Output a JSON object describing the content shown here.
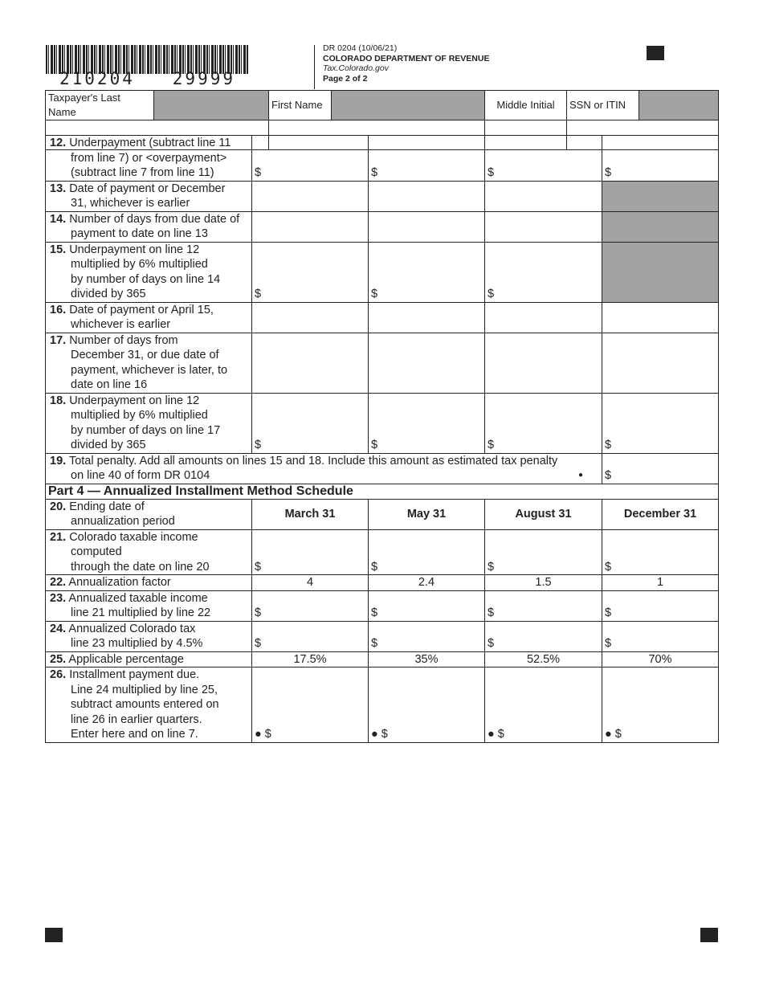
{
  "header": {
    "barcode_number": "210204   29999",
    "form_id": "DR 0204 (10/06/21)",
    "department": "COLORADO DEPARTMENT OF REVENUE",
    "website": "Tax.Colorado.gov",
    "page": "Page 2 of 2"
  },
  "taxpayer": {
    "last_name_label": "Taxpayer's Last Name",
    "first_name_label": "First Name",
    "middle_initial_label": "Middle Initial",
    "ssn_label": "SSN or ITIN",
    "last_name_value": "",
    "first_name_value": "",
    "middle_initial_value": "",
    "ssn_value": ""
  },
  "rows": [
    {
      "num": "12.",
      "text": "Underpayment (subtract line 11\nfrom line 7) or <overpayment>\n(subtract line 7 from line 11)",
      "cells": [
        {
          "t": "$"
        },
        {
          "t": "$"
        },
        {
          "t": "$"
        },
        {
          "t": "$"
        }
      ],
      "h": 56
    },
    {
      "num": "13.",
      "text": "Date of payment or December\n31, whichever is earlier",
      "cells": [
        {
          "t": ""
        },
        {
          "t": ""
        },
        {
          "t": ""
        },
        {
          "shaded": true
        }
      ],
      "h": 37
    },
    {
      "num": "14.",
      "text": "Number of days from due date of\npayment to date on line 13",
      "cells": [
        {
          "t": ""
        },
        {
          "t": ""
        },
        {
          "t": ""
        },
        {
          "shaded": true
        }
      ],
      "h": 37
    },
    {
      "num": "15.",
      "text": "Underpayment on line 12\nmultiplied by 6% multiplied\nby number of days on line 14\ndivided by 365",
      "cells": [
        {
          "t": "$"
        },
        {
          "t": "$"
        },
        {
          "t": "$"
        },
        {
          "shaded": true
        }
      ],
      "h": 74
    },
    {
      "num": "16.",
      "text": "Date of payment or April 15,\nwhichever is earlier",
      "cells": [
        {
          "t": ""
        },
        {
          "t": ""
        },
        {
          "t": ""
        },
        {
          "t": ""
        }
      ],
      "h": 38
    },
    {
      "num": "17.",
      "text": "Number of days from\nDecember 31, or due date of\npayment, whichever is later, to\ndate on line 16",
      "cells": [
        {
          "t": ""
        },
        {
          "t": ""
        },
        {
          "t": ""
        },
        {
          "t": ""
        }
      ],
      "h": 74
    },
    {
      "num": "18.",
      "text": "Underpayment on line 12\nmultiplied by 6% multiplied\nby number of days on line 17\ndivided by 365",
      "cells": [
        {
          "t": "$"
        },
        {
          "t": "$"
        },
        {
          "t": "$"
        },
        {
          "t": "$"
        }
      ],
      "h": 74
    }
  ],
  "line19": {
    "num": "19.",
    "text": "Total penalty. Add all amounts on lines 15 and 18. Include this amount as estimated tax penalty\non line 40 of form DR 0104",
    "bullet": "●",
    "amount": "$"
  },
  "part4": {
    "title": "Part 4 — Annualized Installment Method Schedule",
    "line20": {
      "num": "20.",
      "text": "Ending date of\nannualization period",
      "periods": [
        "March 31",
        "May 31",
        "August 31",
        "December 31"
      ]
    },
    "rows": [
      {
        "num": "21.",
        "text": "Colorado taxable income computed\nthrough the date on line 20",
        "cells": [
          {
            "t": "$"
          },
          {
            "t": "$"
          },
          {
            "t": "$"
          },
          {
            "t": "$"
          }
        ],
        "h": 37
      },
      {
        "num": "22.",
        "text": "Annualization factor",
        "cells": [
          {
            "v": "4"
          },
          {
            "v": "2.4"
          },
          {
            "v": "1.5"
          },
          {
            "v": "1"
          }
        ],
        "h": 19
      },
      {
        "num": "23.",
        "text": "Annualized taxable income\nline 21 multiplied by line 22",
        "cells": [
          {
            "t": "$"
          },
          {
            "t": "$"
          },
          {
            "t": "$"
          },
          {
            "t": "$"
          }
        ],
        "h": 37
      },
      {
        "num": "24.",
        "text": "Annualized Colorado tax\nline 23 multiplied by 4.5%",
        "cells": [
          {
            "t": "$"
          },
          {
            "t": "$"
          },
          {
            "t": "$"
          },
          {
            "t": "$"
          }
        ],
        "h": 37
      },
      {
        "num": "25.",
        "text": "Applicable percentage",
        "cells": [
          {
            "v": "17.5%"
          },
          {
            "v": "35%"
          },
          {
            "v": "52.5%"
          },
          {
            "v": "70%"
          }
        ],
        "h": 19
      },
      {
        "num": "26.",
        "text": "Installment payment due.\nLine 24 multiplied by line 25,\nsubtract amounts entered on\nline 26 in earlier quarters.\nEnter here and on line 7.",
        "cells": [
          {
            "t": "● $"
          },
          {
            "t": "● $"
          },
          {
            "t": "● $"
          },
          {
            "t": "● $"
          }
        ],
        "h": 92
      }
    ]
  }
}
